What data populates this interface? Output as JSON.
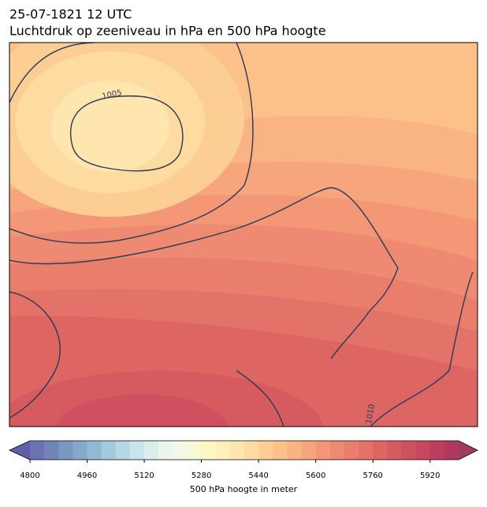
{
  "header": {
    "date": "25-07-1821 12 UTC",
    "title": "Luchtdruk op zeeniveau in hPa en 500 hPa hoogte"
  },
  "map": {
    "isobar_labels": [
      "1005",
      "1010"
    ]
  },
  "colorbar": {
    "min": 4800,
    "max": 6000,
    "ticks": [
      4800,
      4960,
      5120,
      5280,
      5440,
      5600,
      5760,
      5920
    ],
    "label": "500 hPa hoogte in meter",
    "colors": [
      "#6b73b3",
      "#7384ba",
      "#7b98c2",
      "#85a9cb",
      "#92b9d3",
      "#a3cadc",
      "#b5d8e4",
      "#c9e4ea",
      "#dcedee",
      "#ebf5ee",
      "#f2f8e6",
      "#f8f9d6",
      "#fdf7c6",
      "#fef0bb",
      "#fee6ae",
      "#fddba1",
      "#fdce94",
      "#fcc189",
      "#fab382",
      "#f7a57c",
      "#f39777",
      "#ee8a72",
      "#e97e6d",
      "#e37268",
      "#dd6663",
      "#d65b60",
      "#cf505e",
      "#c8465e",
      "#bd3d5e",
      "#b0385e"
    ],
    "extend_colors": [
      "#5f60a8",
      "#a33a60"
    ]
  }
}
